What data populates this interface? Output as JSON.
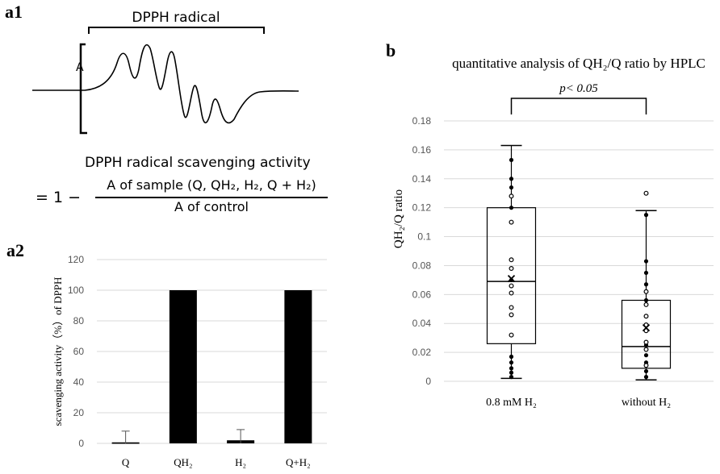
{
  "panel_labels": {
    "a1": "a1",
    "a2": "a2",
    "b": "b"
  },
  "a1": {
    "bracket_label": "DPPH radical",
    "axis_letter": "A",
    "formula_title": "DPPH radical scavenging activity",
    "formula_prefix": "= 1 −",
    "numerator": "A of sample (Q, QH₂, H₂, Q + H₂)",
    "denominator": "A of control"
  },
  "chart_data": [
    {
      "id": "a2",
      "type": "bar",
      "title": "",
      "xlabel": "",
      "ylabel": "scavenging activity（%）of DPPH",
      "categories": [
        "Q",
        "QH₂",
        "H₂",
        "Q+H₂"
      ],
      "values": [
        0,
        100,
        2,
        100
      ],
      "errors": [
        8,
        0,
        7,
        0
      ],
      "ylim": [
        0,
        120
      ],
      "yticks": [
        0,
        20,
        40,
        60,
        80,
        100,
        120
      ],
      "grid": true,
      "bar_color": "#000000"
    },
    {
      "id": "b",
      "type": "box",
      "title": "quantitative analysis of QH₂/Q ratio by HPLC",
      "xlabel": "",
      "ylabel": "QH₂/Q ratio",
      "ylim": [
        0,
        0.18
      ],
      "yticks": [
        0,
        0.02,
        0.04,
        0.06,
        0.08,
        0.1,
        0.12,
        0.14,
        0.16,
        0.18
      ],
      "ytick_labels": [
        "0",
        "0.02",
        "0.04",
        "0.06",
        "0.08",
        "0.1",
        "0.12",
        "0.14",
        "0.16",
        "0.18"
      ],
      "grid": true,
      "significance": "p< 0.05",
      "groups": [
        {
          "label": "0.8 mM H₂",
          "min": 0.002,
          "q1": 0.026,
          "median": 0.069,
          "q3": 0.12,
          "max": 0.163,
          "mean": 0.071,
          "filled_points": [
            0.153,
            0.14,
            0.134,
            0.12,
            0.07,
            0.017,
            0.013,
            0.009,
            0.006,
            0.003
          ],
          "open_points": [
            0.128,
            0.11,
            0.084,
            0.078,
            0.066,
            0.061,
            0.051,
            0.046,
            0.032
          ]
        },
        {
          "label": "without H₂",
          "min": 0.001,
          "q1": 0.009,
          "median": 0.024,
          "q3": 0.056,
          "max": 0.118,
          "mean": 0.037,
          "filled_points": [
            0.115,
            0.083,
            0.075,
            0.067,
            0.056,
            0.035,
            0.025,
            0.018,
            0.013,
            0.007,
            0.003
          ],
          "open_points": [
            0.13,
            0.062,
            0.053,
            0.045,
            0.039,
            0.035,
            0.027,
            0.022,
            0.011
          ]
        }
      ]
    }
  ]
}
